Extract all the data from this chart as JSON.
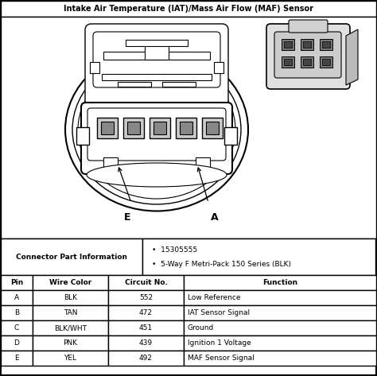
{
  "title": "Intake Air Temperature (IAT)/Mass Air Flow (MAF) Sensor",
  "connector_part_label": "Connector Part Information",
  "bullet_points": [
    "15305555",
    "5-Way F Metri-Pack 150 Series (BLK)"
  ],
  "table_headers": [
    "Pin",
    "Wire Color",
    "Circuit No.",
    "Function"
  ],
  "table_rows": [
    [
      "A",
      "BLK",
      "552",
      "Low Reference"
    ],
    [
      "B",
      "TAN",
      "472",
      "IAT Sensor Signal"
    ],
    [
      "C",
      "BLK/WHT",
      "451",
      "Ground"
    ],
    [
      "D",
      "PNK",
      "439",
      "Ignition 1 Voltage"
    ],
    [
      "E",
      "YEL",
      "492",
      "MAF Sensor Signal"
    ]
  ],
  "bg_color": "#ffffff",
  "border_color": "#000000",
  "text_color": "#000000",
  "fig_width": 4.74,
  "fig_height": 4.73,
  "dpi": 100
}
